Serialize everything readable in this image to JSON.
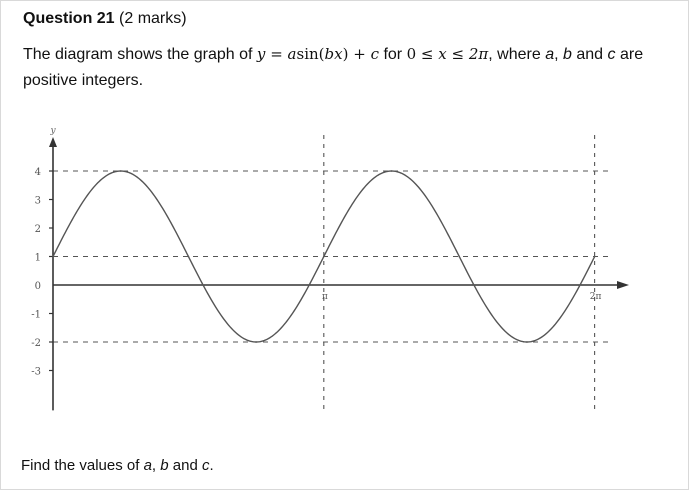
{
  "question": {
    "title": "Question 21",
    "marks": "(2 marks)"
  },
  "stem": {
    "intro": "The diagram shows the graph of",
    "y": "y",
    "eq": "=",
    "a": "a",
    "sin": "sin",
    "b": "b",
    "x": "x",
    "plus": "+",
    "c": "c",
    "for_word": "for",
    "domain_start": "0",
    "le1": "≤",
    "domain_x": "x",
    "le2": "≤",
    "domain_end": "2π",
    "where": ", where",
    "wa": "a",
    "comma": ",",
    "wb": "b",
    "and": "and",
    "wc": "c",
    "tail": "are positive integers."
  },
  "find": {
    "prefix": "Find the values of",
    "a": "a",
    "comma": ",",
    "b": "b",
    "and": "and",
    "c": "c",
    "end": "."
  },
  "chart_data": {
    "type": "line",
    "function": "y = a sin(bx) + c",
    "x_domain": [
      0,
      6.283
    ],
    "y_range": [
      -3,
      4
    ],
    "xlabel": "",
    "ylabel": "y",
    "x_tick_labels": [
      "π",
      "2π"
    ],
    "y_tick_labels": [
      "4",
      "3",
      "2",
      "1",
      "0",
      "-1",
      "-2",
      "-3"
    ],
    "y_ticks": [
      4,
      3,
      2,
      1,
      0,
      -1,
      -2,
      -3
    ],
    "dashed_horizontal_lines": [
      4,
      1,
      -2
    ],
    "dashed_vertical_lines": [
      3.1416,
      6.2832
    ],
    "series": [
      {
        "x": [
          0,
          0.785,
          1.571,
          2.356,
          3.142,
          3.927,
          4.712,
          5.498,
          6.283
        ],
        "y": [
          1,
          4,
          1,
          -2,
          1,
          4,
          1,
          -2,
          1
        ]
      }
    ],
    "grid": false,
    "color": "#555555"
  }
}
